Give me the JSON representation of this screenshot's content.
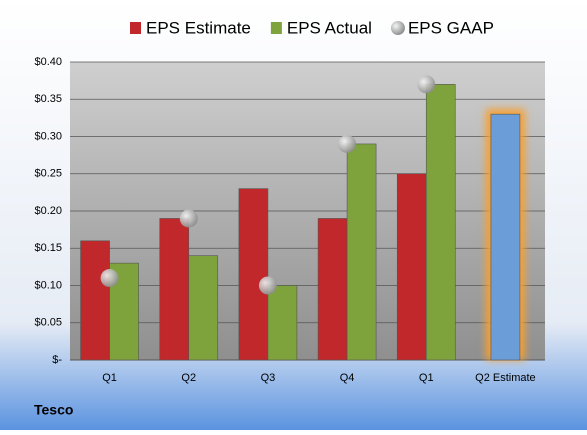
{
  "chart_data": {
    "type": "bar",
    "title": "Tesco",
    "categories": [
      "Q1",
      "Q2",
      "Q3",
      "Q4",
      "Q1",
      "Q2 Estimate"
    ],
    "series": [
      {
        "name": "EPS Estimate",
        "color": "#c0282b",
        "point_colors": [
          "#c0282b",
          "#c0282b",
          "#c0282b",
          "#c0282b",
          "#c0282b",
          "#6b9ed8"
        ],
        "values": [
          0.16,
          0.19,
          0.23,
          0.19,
          0.25,
          0.33
        ]
      },
      {
        "name": "EPS Actual",
        "color": "#7ea33c",
        "values": [
          0.13,
          0.14,
          0.1,
          0.29,
          0.37,
          null
        ]
      },
      {
        "name": "EPS GAAP",
        "color": "#b0b0b0",
        "mark": "circle",
        "values": [
          0.11,
          0.19,
          0.1,
          0.29,
          0.37,
          null
        ]
      }
    ],
    "ylim": [
      0,
      0.4
    ],
    "yticks": [
      {
        "value": 0,
        "label": "$-"
      },
      {
        "value": 0.05,
        "label": "$0.05"
      },
      {
        "value": 0.1,
        "label": "$0.10"
      },
      {
        "value": 0.15,
        "label": "$0.15"
      },
      {
        "value": 0.2,
        "label": "$0.20"
      },
      {
        "value": 0.25,
        "label": "$0.25"
      },
      {
        "value": 0.3,
        "label": "$0.30"
      },
      {
        "value": 0.35,
        "label": "$0.35"
      },
      {
        "value": 0.4,
        "label": "$0.40"
      }
    ],
    "grid": true,
    "legend": "top"
  }
}
